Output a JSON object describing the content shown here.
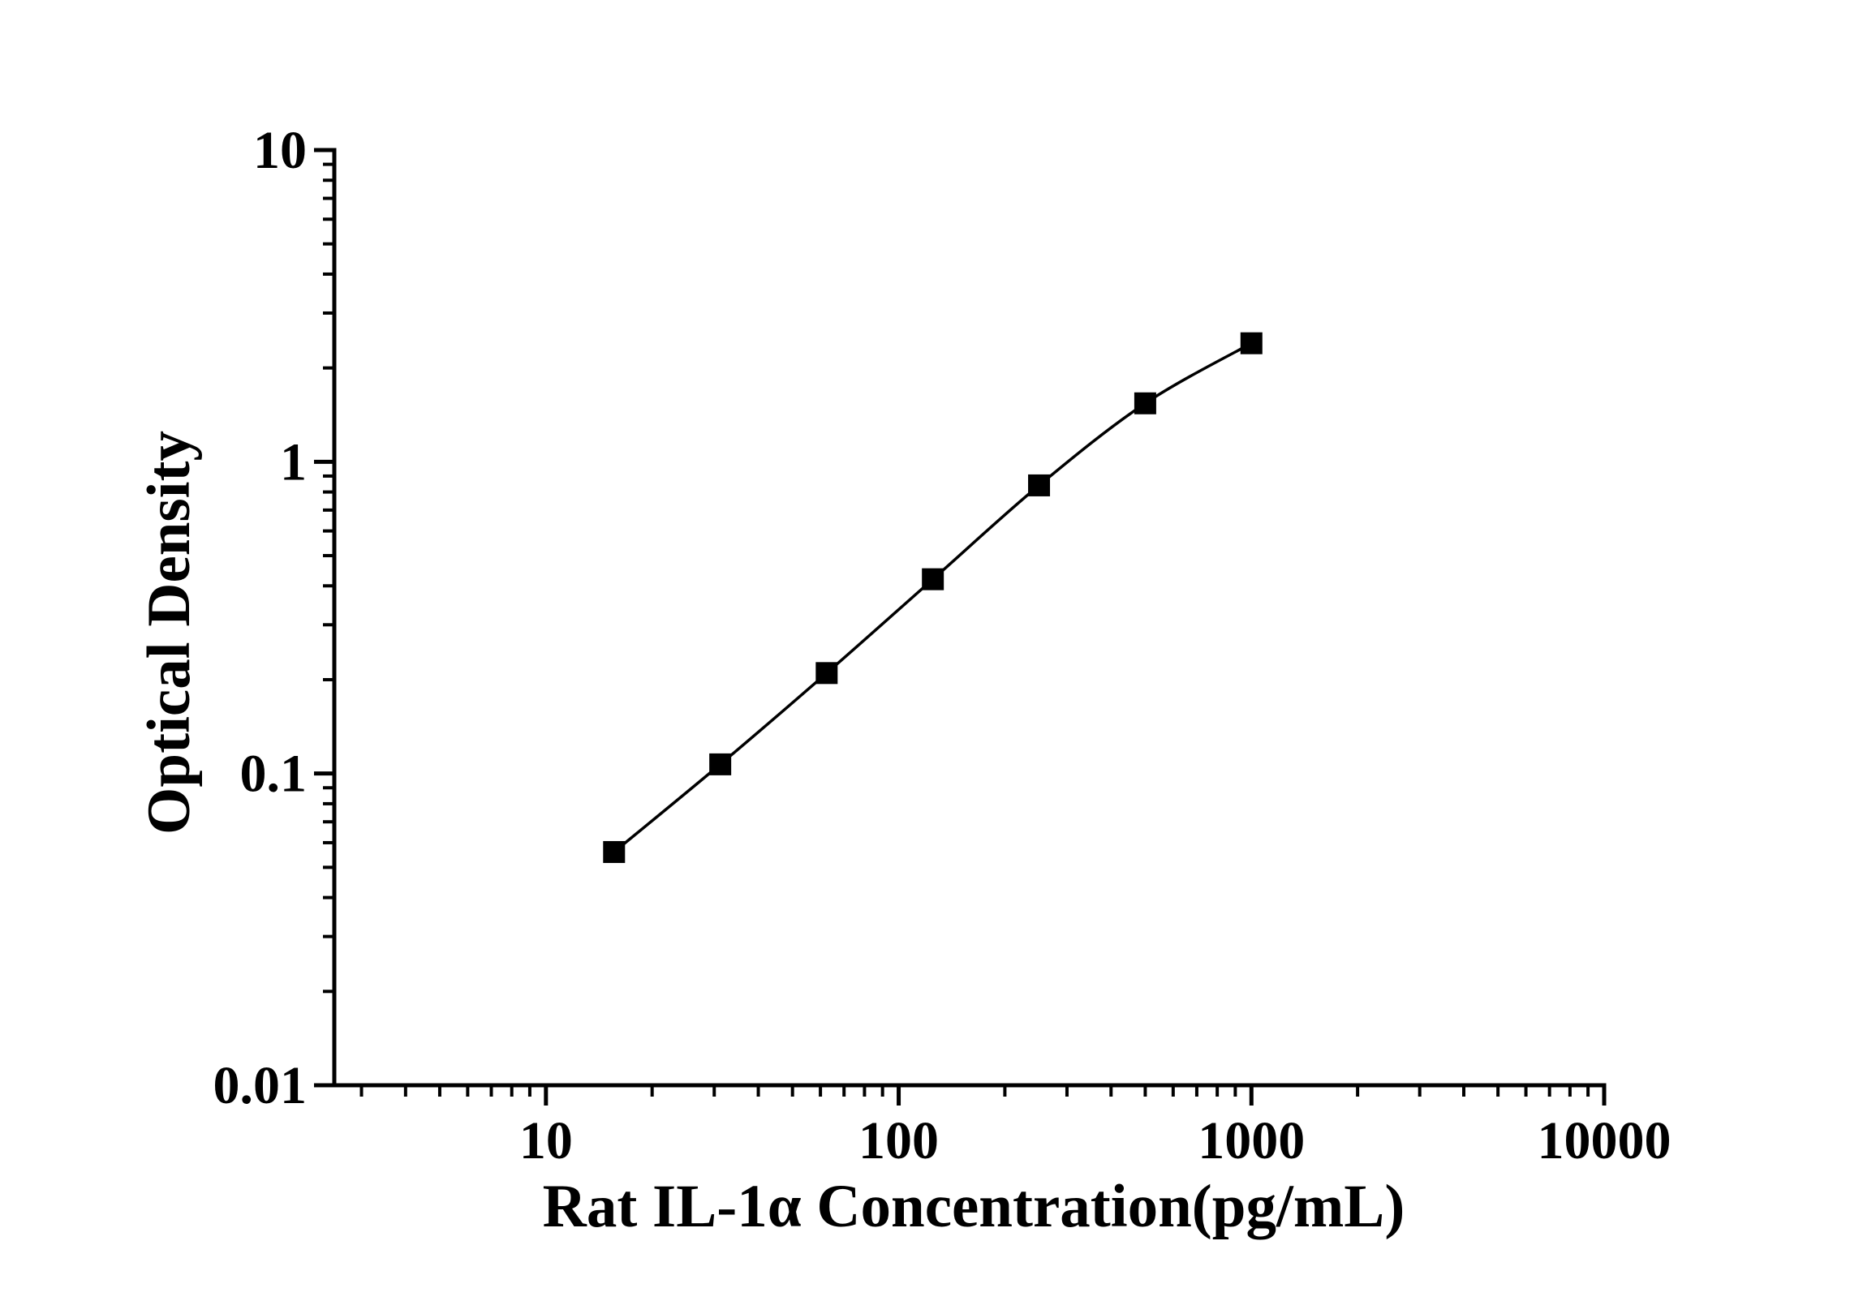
{
  "chart_data": {
    "type": "line",
    "title": "",
    "xlabel": "Rat IL-1α Concentration(pg/mL)",
    "ylabel": "Optical Density",
    "x_scale": "log",
    "y_scale": "log",
    "xlim": [
      2.512,
      10000
    ],
    "ylim": [
      0.01,
      10
    ],
    "x": [
      15.6,
      31.2,
      62.5,
      125,
      250,
      500,
      1000
    ],
    "y": [
      0.056,
      0.107,
      0.21,
      0.42,
      0.84,
      1.54,
      2.4
    ],
    "x_ticks": {
      "values": [
        10,
        100,
        1000,
        10000
      ],
      "labels": [
        "10",
        "100",
        "1000",
        "10000"
      ]
    },
    "y_ticks": {
      "values": [
        10,
        1,
        0.1,
        0.01
      ],
      "labels": [
        "10",
        "1",
        "0.1",
        "0.01"
      ]
    },
    "grid": false,
    "legend": false,
    "marker": "filled-square",
    "marker_size_px": 27,
    "line_color": "#000000",
    "marker_color": "#000000",
    "axis_color": "#000000",
    "text_color": "#000000",
    "background_color": "#ffffff"
  }
}
